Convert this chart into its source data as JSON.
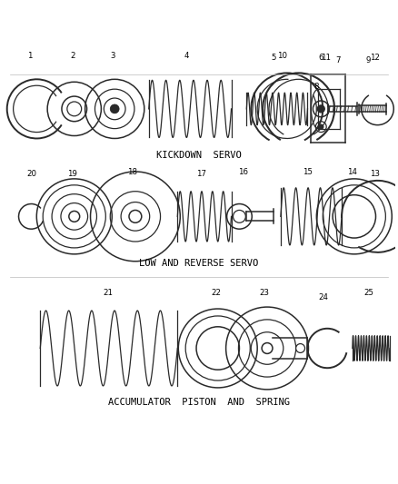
{
  "background_color": "#ffffff",
  "line_color": "#2a2a2a",
  "section1_label": "KICKDOWN  SERVO",
  "section2_label": "LOW AND REVERSE SERVO",
  "section3_label": "ACCUMULATOR  PISTON  AND  SPRING",
  "figsize": [
    4.38,
    5.33
  ],
  "dpi": 100
}
